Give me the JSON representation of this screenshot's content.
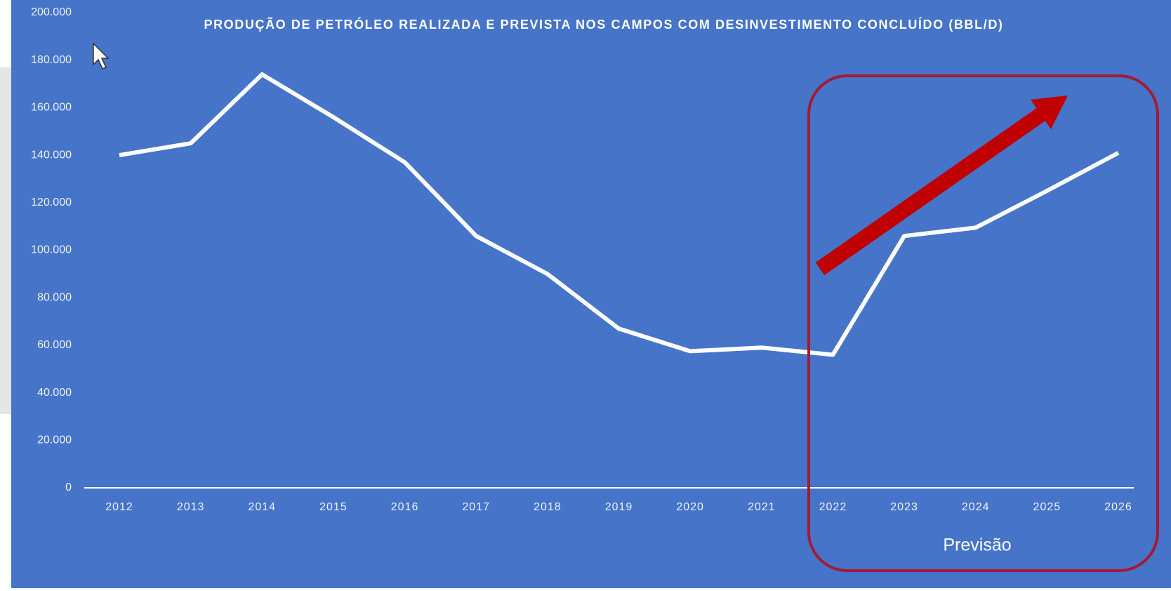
{
  "chart_data": {
    "type": "line",
    "title": "PRODUÇÃO DE PETRÓLEO REALIZADA E PREVISTA NOS CAMPOS COM DESINVESTIMENTO CONCLUÍDO (BBL/D)",
    "annotation": "Previsão",
    "categories": [
      "2012",
      "2013",
      "2014",
      "2015",
      "2016",
      "2017",
      "2018",
      "2019",
      "2020",
      "2021",
      "2022",
      "2023",
      "2024",
      "2025",
      "2026"
    ],
    "values": [
      140000,
      145000,
      174000,
      156000,
      137000,
      106000,
      90000,
      67000,
      57500,
      59000,
      56000,
      106000,
      109500,
      125000,
      141000
    ],
    "color": "#ffffff",
    "ylim": [
      0,
      200000
    ],
    "yticks": [
      0,
      {
        "value": 20000,
        "label": "20.000"
      },
      {
        "value": 40000,
        "label": "40.000"
      },
      {
        "value": 60000,
        "label": "60.000"
      },
      {
        "value": 80000,
        "label": "80.000"
      },
      {
        "value": 100000,
        "label": "100.000"
      },
      {
        "value": 120000,
        "label": "120.000"
      },
      {
        "value": 140000,
        "label": "140.000"
      },
      {
        "value": 160000,
        "label": "160.000"
      },
      {
        "value": 180000,
        "label": "180.000"
      },
      {
        "value": 200000,
        "label": "200.000"
      }
    ],
    "grid": false
  }
}
